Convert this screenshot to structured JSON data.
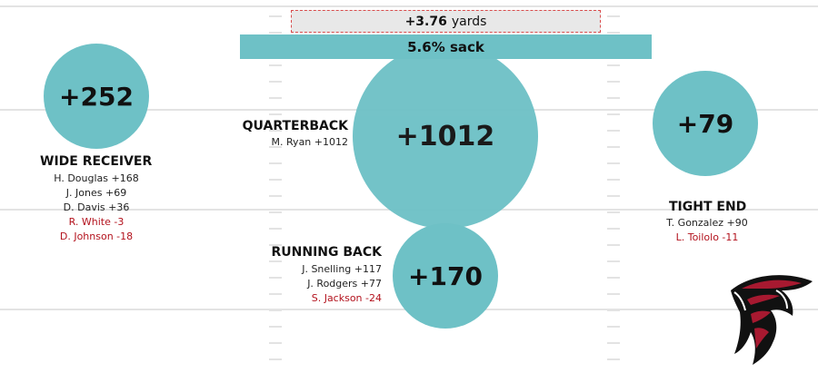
{
  "colors": {
    "bubble": "#6ec1c6",
    "bar": "#6ec1c6",
    "positive_text": "#222222",
    "negative_text": "#b3121d",
    "field_lines": "#e3e3e3"
  },
  "summary": {
    "yards_value": "+3.76",
    "yards_unit": "yards",
    "sack_label": "5.6% sack"
  },
  "chart_data": {
    "type": "bubble",
    "series": [
      {
        "position": "WIDE RECEIVER",
        "total": 252,
        "total_label": "+252",
        "players": [
          {
            "text": "H. Douglas +168",
            "value": 168
          },
          {
            "text": "J. Jones +69",
            "value": 69
          },
          {
            "text": "D. Davis +36",
            "value": 36
          },
          {
            "text": "R. White -3",
            "value": -3
          },
          {
            "text": "D. Johnson -18",
            "value": -18
          }
        ]
      },
      {
        "position": "QUARTERBACK",
        "total": 1012,
        "total_label": "+1012",
        "players": [
          {
            "text": "M. Ryan +1012",
            "value": 1012
          }
        ]
      },
      {
        "position": "RUNNING BACK",
        "total": 170,
        "total_label": "+170",
        "players": [
          {
            "text": "J. Snelling +117",
            "value": 117
          },
          {
            "text": "J. Rodgers +77",
            "value": 77
          },
          {
            "text": "S. Jackson -24",
            "value": -24
          }
        ]
      },
      {
        "position": "TIGHT END",
        "total": 79,
        "total_label": "+79",
        "players": [
          {
            "text": "T. Gonzalez +90",
            "value": 90
          },
          {
            "text": "L. Toilolo -11",
            "value": -11
          }
        ]
      }
    ]
  },
  "logo": {
    "name": "falcons-logo-icon"
  }
}
